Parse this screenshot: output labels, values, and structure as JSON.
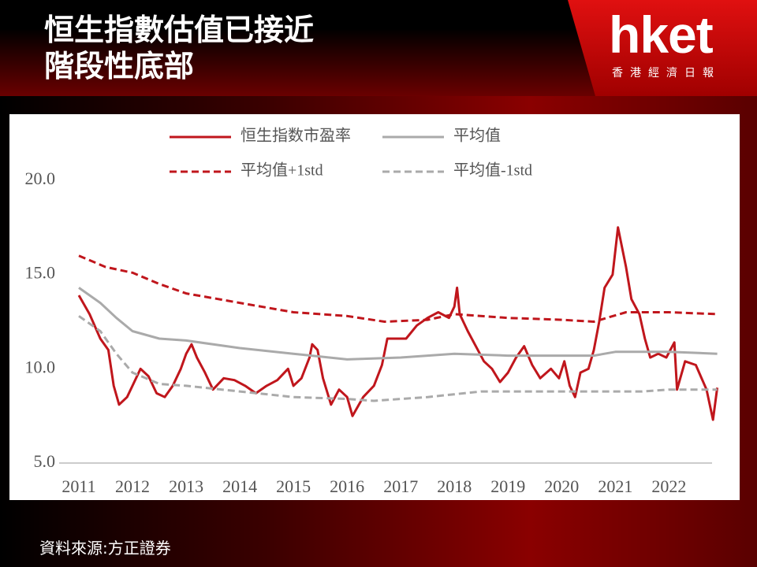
{
  "header": {
    "title_lines": [
      "恒生指數估值已接近",
      "階段性底部"
    ]
  },
  "logo": {
    "text": "hket",
    "subtitle": "香港經濟日報"
  },
  "source": "資料來源:方正證券",
  "chart_data": {
    "type": "line",
    "xlim": [
      2011,
      2022.95
    ],
    "xticks": [
      2011,
      2012,
      2013,
      2014,
      2015,
      2016,
      2017,
      2018,
      2019,
      2020,
      2021,
      2022
    ],
    "ylim": [
      5,
      20
    ],
    "yticks": [
      {
        "value": 5,
        "label": "5.0"
      },
      {
        "value": 10,
        "label": "10.0"
      },
      {
        "value": 15,
        "label": "15.0"
      },
      {
        "value": 20,
        "label": "20.0"
      }
    ],
    "series": [
      {
        "name": "恒生指数市盈率",
        "color": "#c0161c",
        "dash": false,
        "x": [
          2011.0,
          2011.2,
          2011.4,
          2011.55,
          2011.65,
          2011.75,
          2011.9,
          2012.0,
          2012.15,
          2012.3,
          2012.45,
          2012.6,
          2012.75,
          2012.9,
          2013.0,
          2013.1,
          2013.2,
          2013.35,
          2013.5,
          2013.7,
          2013.9,
          2014.1,
          2014.3,
          2014.5,
          2014.7,
          2014.9,
          2015.0,
          2015.15,
          2015.3,
          2015.35,
          2015.45,
          2015.55,
          2015.7,
          2015.85,
          2016.0,
          2016.1,
          2016.3,
          2016.5,
          2016.65,
          2016.75,
          2016.9,
          2017.1,
          2017.3,
          2017.5,
          2017.7,
          2017.9,
          2018.0,
          2018.05,
          2018.1,
          2018.25,
          2018.4,
          2018.55,
          2018.7,
          2018.85,
          2019.0,
          2019.15,
          2019.3,
          2019.45,
          2019.6,
          2019.8,
          2019.95,
          2020.05,
          2020.15,
          2020.25,
          2020.35,
          2020.5,
          2020.6,
          2020.7,
          2020.8,
          2020.95,
          2021.05,
          2021.1,
          2021.2,
          2021.3,
          2021.45,
          2021.55,
          2021.65,
          2021.8,
          2021.95,
          2022.1,
          2022.15,
          2022.3,
          2022.5,
          2022.7,
          2022.82,
          2022.9
        ],
        "values": [
          13.9,
          12.9,
          11.6,
          11.0,
          9.1,
          8.1,
          8.5,
          9.1,
          10.0,
          9.6,
          8.7,
          8.5,
          9.1,
          10.0,
          10.8,
          11.3,
          10.6,
          9.8,
          8.9,
          9.5,
          9.4,
          9.1,
          8.7,
          9.1,
          9.4,
          10.0,
          9.1,
          9.5,
          10.6,
          11.3,
          11.0,
          9.5,
          8.1,
          8.9,
          8.5,
          7.5,
          8.5,
          9.1,
          10.2,
          11.6,
          11.6,
          11.6,
          12.3,
          12.7,
          13.0,
          12.7,
          13.3,
          14.3,
          12.9,
          12.0,
          11.2,
          10.4,
          10.0,
          9.3,
          9.8,
          10.6,
          11.2,
          10.2,
          9.5,
          10.0,
          9.5,
          10.4,
          9.1,
          8.5,
          9.8,
          10.0,
          11.0,
          12.5,
          14.3,
          15.0,
          17.5,
          16.8,
          15.4,
          13.7,
          12.9,
          11.6,
          10.6,
          10.8,
          10.6,
          11.4,
          8.9,
          10.4,
          10.2,
          8.9,
          7.3,
          9.0
        ]
      },
      {
        "name": "平均值",
        "color": "#aaaaaa",
        "dash": false,
        "x": [
          2011.0,
          2011.4,
          2011.7,
          2012.0,
          2012.5,
          2013.0,
          2014.0,
          2015.0,
          2016.0,
          2017.0,
          2018.0,
          2019.0,
          2020.0,
          2020.6,
          2021.0,
          2022.0,
          2022.9
        ],
        "values": [
          14.3,
          13.5,
          12.7,
          12.0,
          11.6,
          11.5,
          11.1,
          10.8,
          10.5,
          10.6,
          10.8,
          10.7,
          10.7,
          10.7,
          10.9,
          10.9,
          10.8
        ]
      },
      {
        "name": "平均值+1std",
        "color": "#c0161c",
        "dash": true,
        "x": [
          2011.0,
          2011.5,
          2012.0,
          2012.5,
          2013.0,
          2014.0,
          2015.0,
          2016.0,
          2016.7,
          2017.5,
          2018.0,
          2019.0,
          2020.0,
          2020.6,
          2021.2,
          2022.0,
          2022.9
        ],
        "values": [
          16.0,
          15.4,
          15.1,
          14.5,
          14.0,
          13.5,
          13.0,
          12.8,
          12.5,
          12.6,
          12.9,
          12.7,
          12.6,
          12.5,
          13.0,
          13.0,
          12.9
        ]
      },
      {
        "name": "平均值-1std",
        "color": "#aaaaaa",
        "dash": true,
        "x": [
          2011.0,
          2011.4,
          2011.7,
          2012.0,
          2012.5,
          2013.0,
          2014.0,
          2015.0,
          2016.0,
          2016.5,
          2017.5,
          2018.5,
          2019.5,
          2020.5,
          2021.5,
          2022.0,
          2022.9
        ],
        "values": [
          12.8,
          12.0,
          10.8,
          9.8,
          9.2,
          9.1,
          8.8,
          8.5,
          8.4,
          8.3,
          8.5,
          8.8,
          8.8,
          8.8,
          8.8,
          8.9,
          8.9
        ]
      }
    ]
  }
}
